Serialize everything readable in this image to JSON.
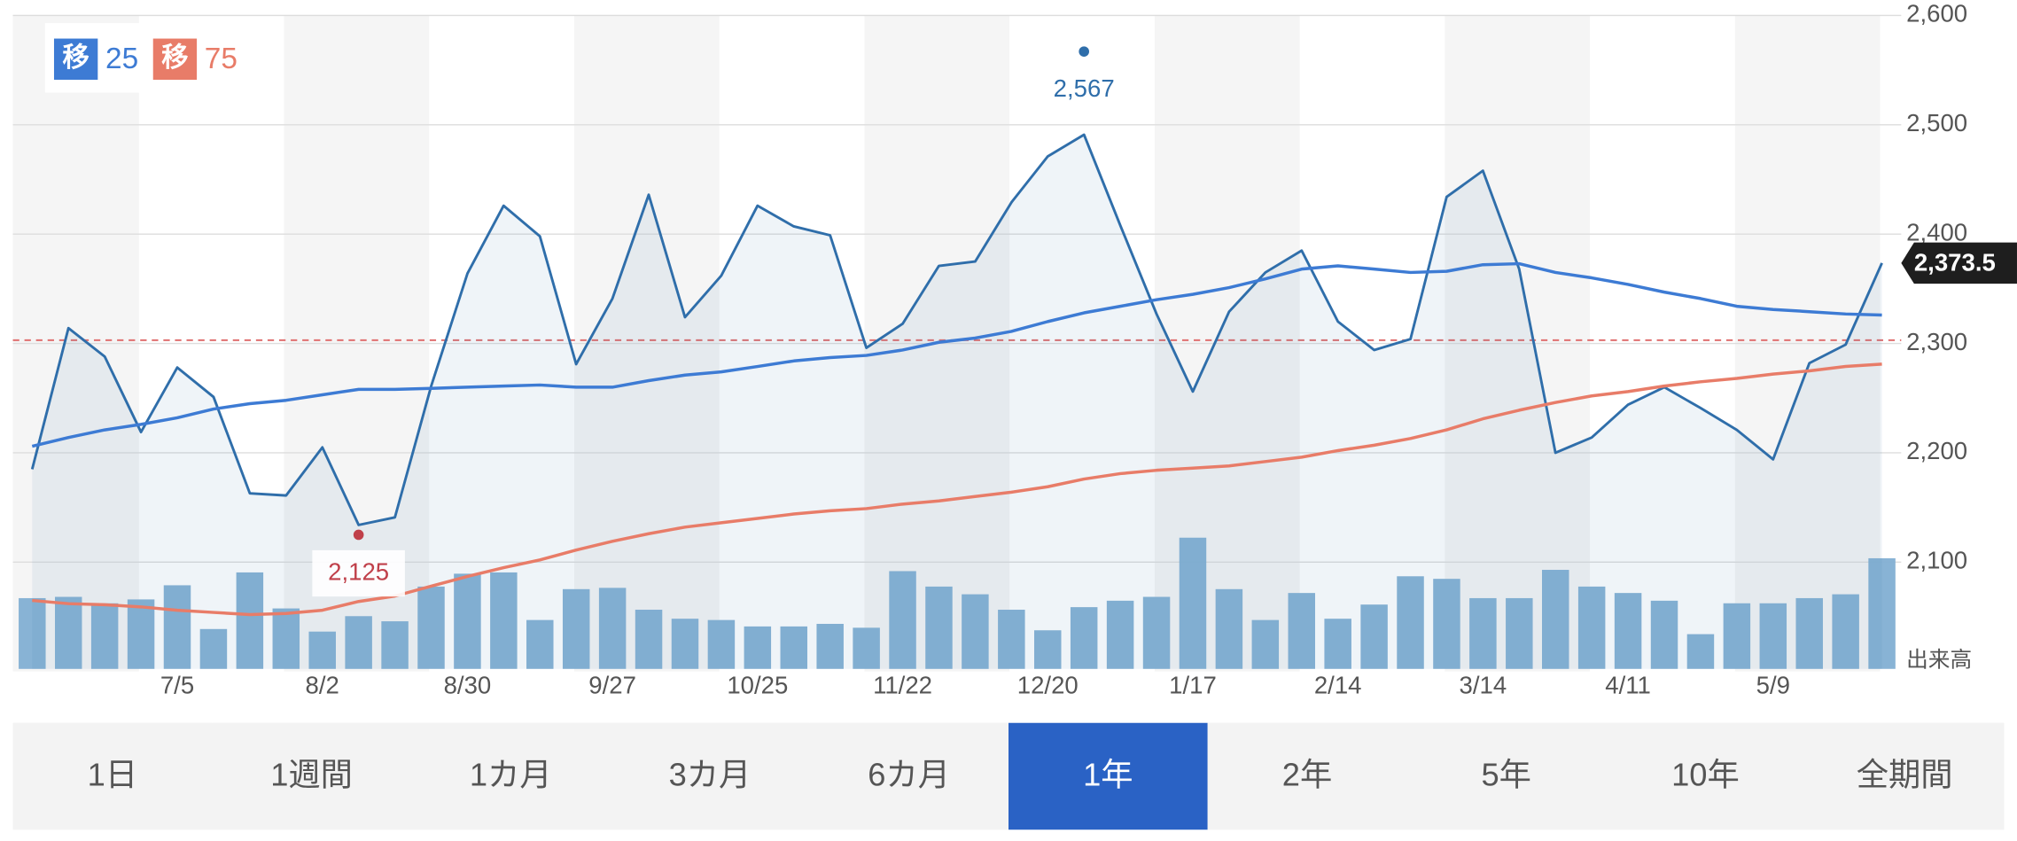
{
  "chart_data": {
    "type": "line",
    "categories": [
      null,
      null,
      null,
      null,
      "7/5",
      null,
      null,
      null,
      "8/2",
      null,
      null,
      null,
      "8/30",
      null,
      null,
      null,
      "9/27",
      null,
      null,
      null,
      "10/25",
      null,
      null,
      null,
      "11/22",
      null,
      null,
      null,
      "12/20",
      null,
      null,
      null,
      "1/17",
      null,
      null,
      null,
      "2/14",
      null,
      null,
      null,
      "3/14",
      null,
      null,
      null,
      "4/11",
      null,
      null,
      null,
      "5/9",
      null,
      null,
      null
    ],
    "series": [
      {
        "color": "#2f6eaa",
        "values": [
          2185,
          2314,
          2288,
          2219,
          2278,
          2251,
          2163,
          2161,
          2205,
          2134,
          2141,
          2261,
          2364,
          2426,
          2398,
          2281,
          2341,
          2436,
          2324,
          2362,
          2426,
          2407,
          2399,
          2296,
          2318,
          2371,
          2375,
          2429,
          2471,
          2491,
          2408,
          2327,
          2256,
          2329,
          2365,
          2385,
          2320,
          2294,
          2304,
          2434,
          2458,
          2368,
          2200,
          2214,
          2244,
          2260,
          2241,
          2221,
          2194,
          2282,
          2299,
          2373.5
        ]
      },
      {
        "name": "25",
        "badge": "移",
        "color": "#3d7bd4",
        "values": [
          2206,
          2214,
          2221,
          2226,
          2232,
          2240,
          2245,
          2248,
          2253,
          2258,
          2258,
          2259,
          2260,
          2261,
          2262,
          2260,
          2260,
          2266,
          2271,
          2274,
          2279,
          2284,
          2287,
          2289,
          2294,
          2301,
          2305,
          2311,
          2320,
          2328,
          2334,
          2340,
          2345,
          2351,
          2359,
          2368,
          2371,
          2368,
          2365,
          2366,
          2372,
          2373,
          2365,
          2360,
          2354,
          2347,
          2341,
          2334,
          2331,
          2329,
          2327,
          2326
        ]
      },
      {
        "name": "75",
        "badge": "移",
        "color": "#e87c68",
        "values": [
          2065,
          2062,
          2061,
          2059,
          2056,
          2054,
          2052,
          2053,
          2056,
          2064,
          2069,
          2078,
          2087,
          2095,
          2102,
          2111,
          2119,
          2126,
          2132,
          2136,
          2140,
          2144,
          2147,
          2149,
          2153,
          2156,
          2160,
          2164,
          2169,
          2176,
          2181,
          2184,
          2186,
          2188,
          2192,
          2196,
          2202,
          2207,
          2213,
          2221,
          2231,
          2239,
          2246,
          2252,
          2256,
          2261,
          2265,
          2268,
          2272,
          2275,
          2279,
          2281
        ]
      }
    ],
    "volume": {
      "label": "出来高",
      "color": "#82afd3",
      "values": [
        55,
        56,
        51,
        54,
        65,
        31,
        75,
        47,
        29,
        41,
        37,
        64,
        74,
        75,
        38,
        62,
        63,
        46,
        39,
        38,
        33,
        33,
        35,
        32,
        76,
        64,
        58,
        46,
        30,
        48,
        53,
        56,
        102,
        62,
        38,
        59,
        39,
        50,
        72,
        70,
        55,
        55,
        77,
        64,
        59,
        53,
        27,
        51,
        51,
        55,
        58,
        86
      ]
    },
    "ylim": [
      2000,
      2600
    ],
    "yticks": [
      {
        "value": 2100,
        "label": "2,100"
      },
      {
        "value": 2200,
        "label": "2,200"
      },
      {
        "value": 2300,
        "label": "2,300"
      },
      {
        "value": 2400,
        "label": "2,400"
      },
      {
        "value": 2500,
        "label": "2,500"
      },
      {
        "value": 2600,
        "label": "2,600"
      }
    ],
    "grid": true,
    "reference_line": {
      "value": 2303,
      "color": "#e07070"
    },
    "annotations": [
      {
        "index": 29,
        "value": 2567,
        "label": "2,567",
        "color": "#2f6eaa"
      },
      {
        "index": 9,
        "value": 2125,
        "label": "2,125",
        "color": "#c0404a"
      }
    ],
    "current": {
      "value": 2373.5,
      "label": "2,373.5"
    }
  },
  "periods": {
    "options": [
      "1日",
      "1週間",
      "1カ月",
      "3カ月",
      "6カ月",
      "1年",
      "2年",
      "5年",
      "10年",
      "全期間"
    ],
    "selected": 5
  }
}
